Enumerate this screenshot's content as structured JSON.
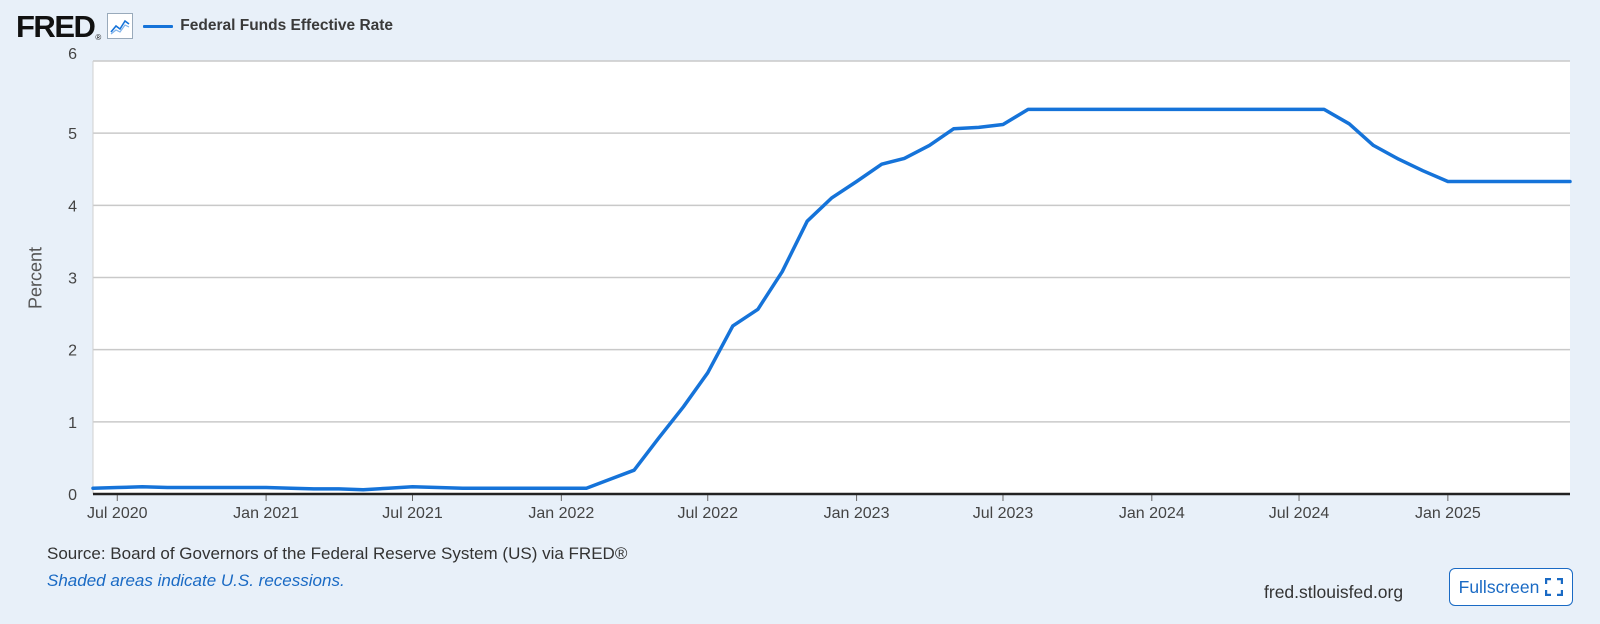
{
  "header": {
    "logo_text": "FRED",
    "logo_mark": "®",
    "graph_icon": "line-graph-icon"
  },
  "chart_data": {
    "type": "line",
    "xlabel": "",
    "ylabel": "Percent",
    "ylim": [
      0,
      6
    ],
    "yticks": [
      0,
      1,
      2,
      3,
      4,
      5,
      6
    ],
    "xlim": [
      "2020-06-01",
      "2025-06-01"
    ],
    "xticks": [
      {
        "date": "2020-07-01",
        "label": "Jul 2020"
      },
      {
        "date": "2021-01-01",
        "label": "Jan 2021"
      },
      {
        "date": "2021-07-01",
        "label": "Jul 2021"
      },
      {
        "date": "2022-01-01",
        "label": "Jan 2022"
      },
      {
        "date": "2022-07-01",
        "label": "Jul 2022"
      },
      {
        "date": "2023-01-01",
        "label": "Jan 2023"
      },
      {
        "date": "2023-07-01",
        "label": "Jul 2023"
      },
      {
        "date": "2024-01-01",
        "label": "Jan 2024"
      },
      {
        "date": "2024-07-01",
        "label": "Jul 2024"
      },
      {
        "date": "2025-01-01",
        "label": "Jan 2025"
      }
    ],
    "grid": true,
    "legend_position": "top-left",
    "series": [
      {
        "name": "Federal Funds Effective Rate",
        "color": "#1573d9",
        "x": [
          "2020-06-01",
          "2020-07-01",
          "2020-08-01",
          "2020-09-01",
          "2020-10-01",
          "2020-11-01",
          "2020-12-01",
          "2021-01-01",
          "2021-02-01",
          "2021-03-01",
          "2021-04-01",
          "2021-05-01",
          "2021-06-01",
          "2021-07-01",
          "2021-08-01",
          "2021-09-01",
          "2021-10-01",
          "2021-11-01",
          "2021-12-01",
          "2022-01-01",
          "2022-02-01",
          "2022-03-01",
          "2022-04-01",
          "2022-05-01",
          "2022-06-01",
          "2022-07-01",
          "2022-08-01",
          "2022-09-01",
          "2022-10-01",
          "2022-11-01",
          "2022-12-01",
          "2023-01-01",
          "2023-02-01",
          "2023-03-01",
          "2023-04-01",
          "2023-05-01",
          "2023-06-01",
          "2023-07-01",
          "2023-08-01",
          "2023-09-01",
          "2023-10-01",
          "2023-11-01",
          "2023-12-01",
          "2024-01-01",
          "2024-02-01",
          "2024-03-01",
          "2024-04-01",
          "2024-05-01",
          "2024-06-01",
          "2024-07-01",
          "2024-08-01",
          "2024-09-01",
          "2024-10-01",
          "2024-11-01",
          "2024-12-01",
          "2025-01-01",
          "2025-02-01",
          "2025-03-01",
          "2025-04-01",
          "2025-05-01",
          "2025-06-01"
        ],
        "values": [
          0.08,
          0.09,
          0.1,
          0.09,
          0.09,
          0.09,
          0.09,
          0.09,
          0.08,
          0.07,
          0.07,
          0.06,
          0.08,
          0.1,
          0.09,
          0.08,
          0.08,
          0.08,
          0.08,
          0.08,
          0.08,
          0.2,
          0.33,
          0.77,
          1.21,
          1.68,
          2.33,
          2.56,
          3.08,
          3.78,
          4.1,
          4.33,
          4.57,
          4.65,
          4.83,
          5.06,
          5.08,
          5.12,
          5.33,
          5.33,
          5.33,
          5.33,
          5.33,
          5.33,
          5.33,
          5.33,
          5.33,
          5.33,
          5.33,
          5.33,
          5.33,
          5.13,
          4.83,
          4.64,
          4.48,
          4.33,
          4.33,
          4.33,
          4.33,
          4.33,
          4.33
        ]
      }
    ]
  },
  "footer": {
    "source": "Source: Board of Governors of the Federal Reserve System (US) via FRED®",
    "recession_note": "Shaded areas indicate U.S. recessions.",
    "site": "fred.stlouisfed.org",
    "fullscreen_label": "Fullscreen",
    "fullscreen_icon": "expand-icon"
  }
}
